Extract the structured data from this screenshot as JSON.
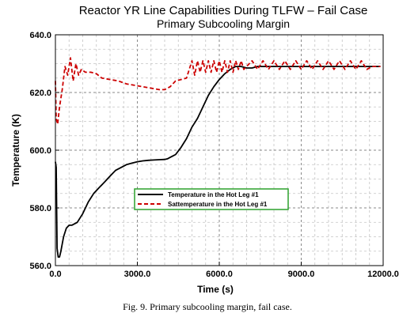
{
  "chart_data": {
    "type": "line",
    "title": "Reactor YR Line Capabilities During TLFW – Fail Case",
    "subtitle": "Primary Subcooling Margin",
    "xlabel": "Time (s)",
    "ylabel": "Temperature (K)",
    "xlim": [
      0,
      12000
    ],
    "ylim": [
      560,
      640
    ],
    "x_ticks": [
      0,
      3000,
      6000,
      9000,
      12000
    ],
    "x_tick_labels": [
      "0.0",
      "3000.0",
      "6000.0",
      "9000.0",
      "12000.0"
    ],
    "y_ticks": [
      560,
      580,
      600,
      620,
      640
    ],
    "y_tick_labels": [
      "560.0",
      "580.0",
      "600.0",
      "620.0",
      "640.0"
    ],
    "grid": true,
    "legend_position": "center",
    "series": [
      {
        "name": "Temperature in the Hot Leg #1",
        "color": "#000000",
        "style": "solid",
        "x": [
          0,
          30,
          60,
          100,
          150,
          200,
          300,
          400,
          500,
          600,
          800,
          1000,
          1200,
          1400,
          1600,
          1800,
          2000,
          2200,
          2400,
          2600,
          2800,
          3000,
          3200,
          3400,
          3600,
          3800,
          4000,
          4100,
          4200,
          4300,
          4400,
          4600,
          4800,
          5000,
          5200,
          5400,
          5600,
          5800,
          6000,
          6200,
          6400,
          6600,
          6800,
          7000,
          7200,
          7400,
          7600,
          7800,
          8000,
          8400,
          8800,
          9200,
          9600,
          10000,
          10400,
          10800,
          11200,
          11600,
          11900
        ],
        "y": [
          596,
          594,
          566,
          563,
          563,
          565,
          570,
          573,
          574,
          574,
          575,
          578,
          582,
          585,
          587,
          589,
          591,
          593,
          594,
          595,
          595.5,
          596,
          596.3,
          596.5,
          596.6,
          596.7,
          596.8,
          597,
          597.5,
          598,
          598.5,
          601,
          604,
          608,
          611,
          615,
          619,
          622,
          624.5,
          626.5,
          628,
          629,
          629,
          628.5,
          628.5,
          629,
          629,
          629,
          629,
          629,
          629,
          629,
          629,
          629,
          629,
          629,
          629,
          629,
          629
        ]
      },
      {
        "name": "Sattemperature in the Hot Leg #1",
        "color": "#cc0000",
        "style": "dashed",
        "x": [
          0,
          30,
          80,
          150,
          250,
          350,
          450,
          550,
          650,
          750,
          850,
          950,
          1100,
          1300,
          1500,
          1700,
          2000,
          2300,
          2600,
          2900,
          3200,
          3500,
          3800,
          4000,
          4200,
          4400,
          4600,
          4800,
          5000,
          5100,
          5200,
          5300,
          5400,
          5500,
          5600,
          5700,
          5800,
          5900,
          6000,
          6100,
          6200,
          6300,
          6400,
          6500,
          6600,
          6700,
          6800,
          6900,
          7000,
          7200,
          7400,
          7600,
          7800,
          8000,
          8200,
          8400,
          8600,
          8800,
          9000,
          9200,
          9400,
          9600,
          9800,
          10000,
          10200,
          10400,
          10600,
          10800,
          11000,
          11200,
          11400,
          11600,
          11900
        ],
        "y": [
          624,
          611,
          609,
          615,
          621,
          629,
          626,
          632,
          624,
          630,
          626,
          628,
          627,
          627,
          626.5,
          625,
          624.5,
          624,
          623,
          622.5,
          622,
          621.5,
          621,
          621,
          622,
          624,
          624.5,
          625,
          631,
          626,
          631,
          627,
          631,
          627,
          631,
          627,
          631,
          627,
          631,
          627,
          631,
          627,
          631,
          627,
          631,
          628,
          631,
          628,
          629,
          631,
          628,
          631,
          628,
          631,
          628,
          631,
          628,
          631,
          628,
          631,
          628,
          631,
          628,
          631,
          628,
          631,
          628,
          631,
          628,
          631,
          628,
          629,
          629
        ]
      }
    ]
  },
  "caption": "Fig. 9.  Primary subcooling margin, fail case."
}
